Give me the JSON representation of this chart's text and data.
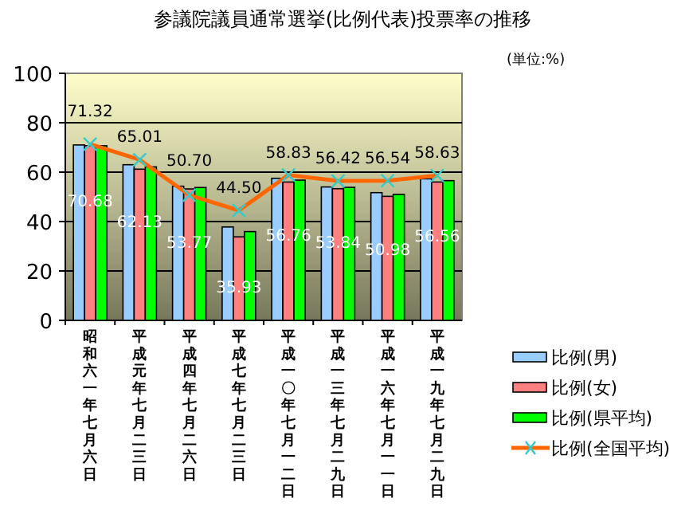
{
  "chart_data": {
    "type": "bar",
    "title": "参議院議員通常選挙(比例代表)投票率の推移",
    "annotations": [
      "(単位:%)"
    ],
    "categories": [
      "昭和六一年七月六日",
      "平成元年七月二三日",
      "平成四年七月二六日",
      "平成七年七月二三日",
      "平成一〇年七月一二日",
      "平成一三年七月二九日",
      "平成一六年七月一一日",
      "平成一九年七月二九日"
    ],
    "series": [
      {
        "name": "比例(男)",
        "color": "#99ccff",
        "values": [
          71.0,
          63.0,
          54.3,
          37.8,
          57.5,
          54.0,
          51.7,
          57.3
        ]
      },
      {
        "name": "比例(女)",
        "color": "#ff8080",
        "values": [
          70.7,
          61.2,
          53.2,
          33.8,
          56.0,
          53.3,
          50.2,
          56.0
        ]
      },
      {
        "name": "比例(県平均)",
        "color": "#00ff00",
        "values": [
          70.68,
          62.13,
          53.77,
          35.93,
          56.76,
          53.84,
          50.98,
          56.56
        ],
        "value_labels": [
          "70.68",
          "62.13",
          "53.77",
          "35.93",
          "56.76",
          "53.84",
          "50.98",
          "56.56"
        ]
      },
      {
        "name": "比例(全国平均)",
        "type": "line",
        "color": "#ff6600",
        "marker": "cross",
        "values": [
          71.32,
          65.01,
          50.7,
          44.5,
          58.83,
          56.42,
          56.54,
          58.63
        ],
        "value_labels": [
          "71.32",
          "65.01",
          "50.70",
          "44.50",
          "58.83",
          "56.42",
          "56.54",
          "58.63"
        ]
      }
    ],
    "ylim": [
      0,
      100
    ],
    "yticks": [
      0,
      20,
      40,
      60,
      80,
      100
    ],
    "grid": "y",
    "legend": "right"
  }
}
